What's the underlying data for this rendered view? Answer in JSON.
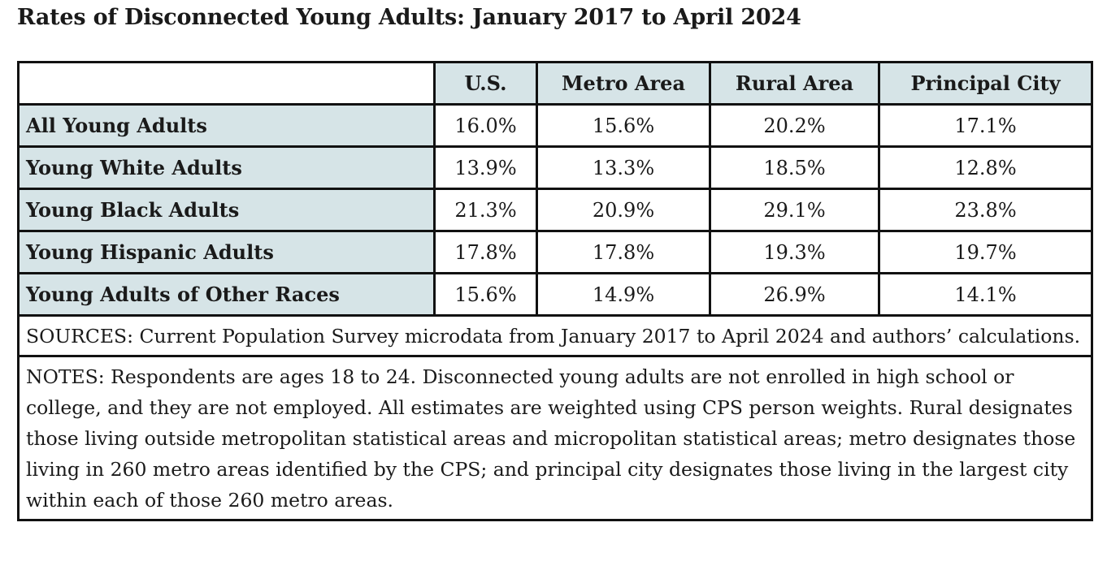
{
  "chart_data": {
    "type": "table",
    "title": "Rates of Disconnected Young Adults: January 2017 to April 2024",
    "columns": [
      "U.S.",
      "Metro Area",
      "Rural Area",
      "Principal City"
    ],
    "rows": [
      {
        "label": "All Young Adults",
        "values": [
          "16.0%",
          "15.6%",
          "20.2%",
          "17.1%"
        ]
      },
      {
        "label": "Young White Adults",
        "values": [
          "13.9%",
          "13.3%",
          "18.5%",
          "12.8%"
        ]
      },
      {
        "label": "Young Black Adults",
        "values": [
          "21.3%",
          "20.9%",
          "29.1%",
          "23.8%"
        ]
      },
      {
        "label": "Young Hispanic Adults",
        "values": [
          "17.8%",
          "17.8%",
          "19.3%",
          "19.7%"
        ]
      },
      {
        "label": "Young Adults of Other Races",
        "values": [
          "15.6%",
          "14.9%",
          "26.9%",
          "14.1%"
        ]
      }
    ],
    "sources": "SOURCES: Current Population Survey microdata from January 2017 to April 2024 and authors’ calculations.",
    "notes": "NOTES: Respondents are ages 18 to 24. Disconnected young adults are not enrolled in high school or college, and they are not employed. All estimates are weighted using CPS person weights. Rural designates those living outside metropolitan statistical areas and micropolitan statistical areas; metro designates those living in 260 metro areas identified by the CPS; and principal city designates those living in the largest city within each of those 260 metro areas."
  },
  "colors": {
    "header_fill": "#d6e4e7",
    "border": "#111111",
    "cell_fill": "#ffffff"
  }
}
